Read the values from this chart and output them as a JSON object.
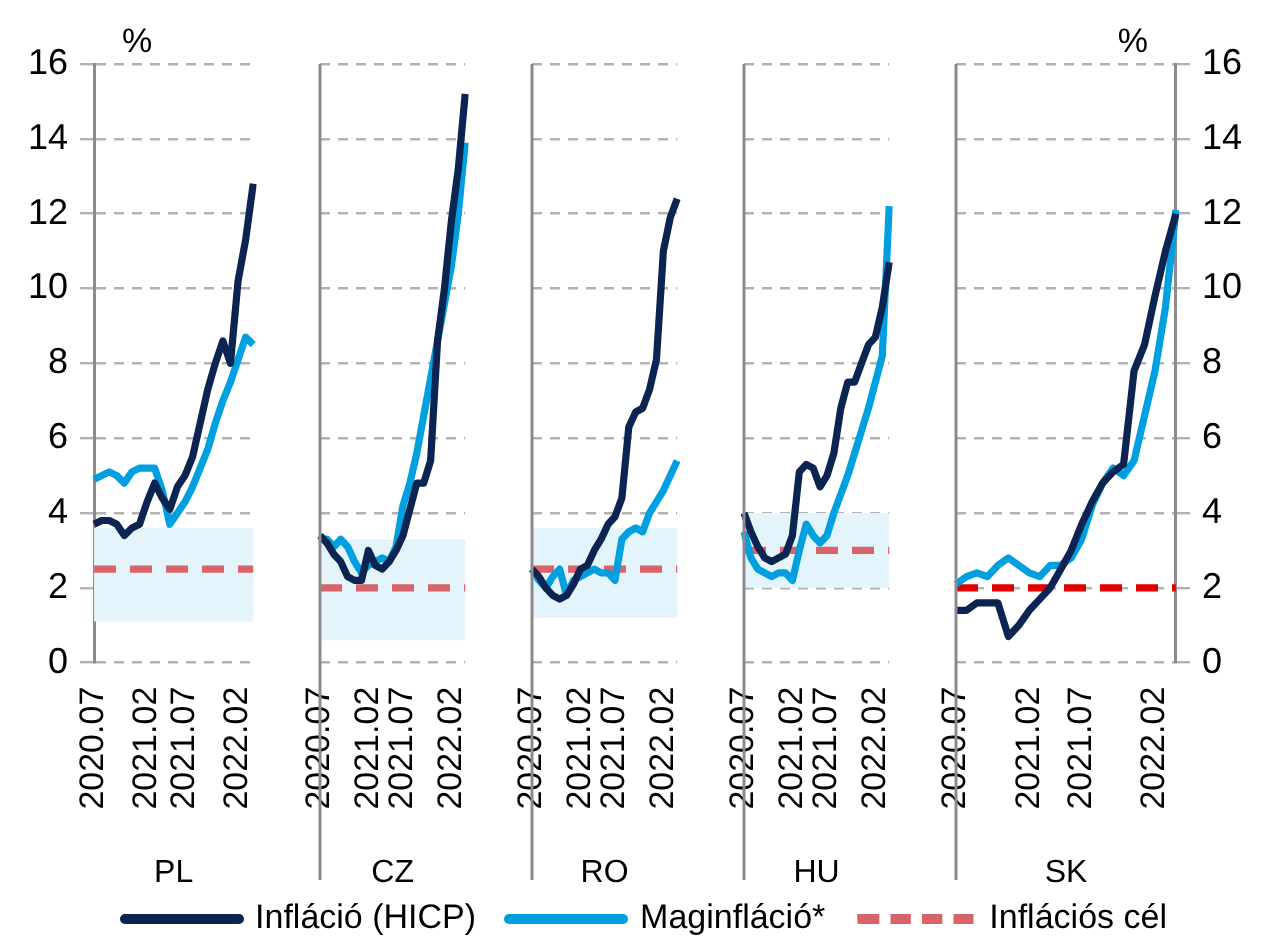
{
  "chart_data": [
    {
      "type": "line",
      "xlabel": "PL",
      "ylabel": "%",
      "categories": [
        "2020.07",
        null,
        null,
        null,
        null,
        null,
        null,
        "2021.02",
        null,
        null,
        null,
        null,
        "2021.07",
        null,
        null,
        null,
        null,
        null,
        null,
        "2022.02",
        null,
        null
      ],
      "ylim": [
        0,
        16
      ],
      "yticks": [
        0,
        2,
        4,
        6,
        8,
        10,
        12,
        14,
        16
      ],
      "grid": "y",
      "legend": "bottom",
      "bands": [
        {
          "axis": "y",
          "from": 1.1,
          "to": 3.6,
          "color": "#e3f4fb"
        }
      ],
      "series": [
        {
          "name": "Infláció (HICP)",
          "color": "#0b2452",
          "values": [
            3.7,
            3.8,
            3.8,
            3.7,
            3.4,
            3.6,
            3.7,
            4.3,
            4.8,
            4.4,
            4.1,
            4.7,
            5.0,
            5.5,
            6.4,
            7.3,
            8.0,
            8.6,
            8.0,
            10.2,
            11.3,
            12.8
          ]
        },
        {
          "name": "Maginfláció*",
          "color": "#00a0e0",
          "values": [
            4.9,
            5.0,
            5.1,
            5.0,
            4.8,
            5.1,
            5.2,
            5.2,
            5.2,
            4.6,
            3.7,
            4.0,
            4.3,
            4.7,
            5.2,
            5.7,
            6.4,
            7.0,
            7.5,
            8.1,
            8.7,
            8.5
          ]
        },
        {
          "name": "Inflációs cél",
          "line_style": "dashed",
          "color": "#d9636b",
          "values": [
            2.5,
            2.5,
            2.5,
            2.5,
            2.5,
            2.5,
            2.5,
            2.5,
            2.5,
            2.5,
            2.5,
            2.5,
            2.5,
            2.5,
            2.5,
            2.5,
            2.5,
            2.5,
            2.5,
            2.5,
            2.5,
            2.5
          ]
        }
      ]
    },
    {
      "type": "line",
      "xlabel": "CZ",
      "categories": [
        "2020.07",
        null,
        null,
        null,
        null,
        null,
        null,
        "2021.02",
        null,
        null,
        null,
        null,
        "2021.07",
        null,
        null,
        null,
        null,
        null,
        null,
        "2022.02",
        null,
        null
      ],
      "ylim": [
        0,
        16
      ],
      "yticks": [
        0,
        2,
        4,
        6,
        8,
        10,
        12,
        14,
        16
      ],
      "grid": "y",
      "tick_labels": "x",
      "bands": [
        {
          "axis": "y",
          "from": 0.6,
          "to": 3.3,
          "color": "#e3f4fb"
        }
      ],
      "series": [
        {
          "color": "#0b2452",
          "values": [
            3.4,
            3.2,
            2.9,
            2.7,
            2.3,
            2.2,
            2.2,
            3.0,
            2.6,
            2.5,
            2.7,
            3.0,
            3.4,
            4.1,
            4.8,
            4.8,
            5.4,
            8.6,
            10.0,
            11.8,
            13.2,
            15.2
          ]
        },
        {
          "color": "#00a0e0",
          "values": [
            3.3,
            3.3,
            3.1,
            3.3,
            3.1,
            2.7,
            2.4,
            2.6,
            2.7,
            2.8,
            2.7,
            3.1,
            4.2,
            4.8,
            5.6,
            6.6,
            7.6,
            8.6,
            9.6,
            10.6,
            12.0,
            13.9
          ]
        },
        {
          "line_style": "dashed",
          "color": "#d9636b",
          "values": [
            2,
            2,
            2,
            2,
            2,
            2,
            2,
            2,
            2,
            2,
            2,
            2,
            2,
            2,
            2,
            2,
            2,
            2,
            2,
            2,
            2,
            2
          ]
        }
      ]
    },
    {
      "type": "line",
      "xlabel": "RO",
      "categories": [
        "2020.07",
        null,
        null,
        null,
        null,
        null,
        null,
        "2021.02",
        null,
        null,
        null,
        null,
        "2021.07",
        null,
        null,
        null,
        null,
        null,
        null,
        "2022.02",
        null,
        null
      ],
      "ylim": [
        0,
        16
      ],
      "yticks": [
        0,
        2,
        4,
        6,
        8,
        10,
        12,
        14,
        16
      ],
      "grid": "y",
      "tick_labels": "x",
      "bands": [
        {
          "axis": "y",
          "from": 1.2,
          "to": 3.6,
          "color": "#e3f4fb"
        }
      ],
      "series": [
        {
          "color": "#0b2452",
          "values": [
            2.5,
            2.3,
            2.0,
            1.8,
            1.7,
            1.8,
            2.1,
            2.5,
            2.6,
            3.0,
            3.3,
            3.7,
            3.9,
            4.4,
            6.3,
            6.7,
            6.8,
            7.3,
            8.1,
            11.0,
            11.9,
            12.4
          ]
        },
        {
          "color": "#00a0e0",
          "values": [
            2.5,
            2.2,
            2.0,
            2.3,
            2.5,
            1.8,
            2.2,
            2.3,
            2.4,
            2.5,
            2.4,
            2.4,
            2.2,
            3.3,
            3.5,
            3.6,
            3.5,
            4.0,
            4.3,
            4.6,
            5.0,
            5.4
          ]
        },
        {
          "line_style": "dashed",
          "color": "#d9636b",
          "values": [
            2.5,
            2.5,
            2.5,
            2.5,
            2.5,
            2.5,
            2.5,
            2.5,
            2.5,
            2.5,
            2.5,
            2.5,
            2.5,
            2.5,
            2.5,
            2.5,
            2.5,
            2.5,
            2.5,
            2.5,
            2.5,
            2.5
          ]
        }
      ]
    },
    {
      "type": "line",
      "xlabel": "HU",
      "categories": [
        "2020.07",
        null,
        null,
        null,
        null,
        null,
        null,
        "2021.02",
        null,
        null,
        null,
        null,
        "2021.07",
        null,
        null,
        null,
        null,
        null,
        null,
        "2022.02",
        null,
        null
      ],
      "ylim": [
        0,
        16
      ],
      "yticks": [
        0,
        2,
        4,
        6,
        8,
        10,
        12,
        14,
        16
      ],
      "grid": "y",
      "tick_labels": "x",
      "bands": [
        {
          "axis": "y",
          "from": 2,
          "to": 4,
          "color": "#e3f4fb"
        }
      ],
      "series": [
        {
          "color": "#0b2452",
          "values": [
            4.0,
            3.5,
            3.1,
            2.8,
            2.7,
            2.8,
            2.9,
            3.4,
            5.1,
            5.3,
            5.2,
            4.7,
            5.0,
            5.6,
            6.8,
            7.5,
            7.5,
            8.0,
            8.5,
            8.7,
            9.5,
            10.7
          ]
        },
        {
          "color": "#00a0e0",
          "values": [
            3.5,
            2.8,
            2.5,
            2.4,
            2.3,
            2.4,
            2.4,
            2.2,
            3.0,
            3.7,
            3.4,
            3.2,
            3.4,
            4.0,
            4.5,
            5.0,
            5.6,
            6.2,
            6.8,
            7.5,
            8.2,
            12.2
          ]
        },
        {
          "line_style": "dashed",
          "color": "#d9636b",
          "values": [
            3,
            3,
            3,
            3,
            3,
            3,
            3,
            3,
            3,
            3,
            3,
            3,
            3,
            3,
            3,
            3,
            3,
            3,
            3,
            3,
            3,
            3
          ]
        }
      ]
    },
    {
      "type": "line",
      "xlabel": "SK",
      "y2label": "%",
      "categories": [
        "2020.07",
        null,
        null,
        null,
        null,
        null,
        null,
        "2021.02",
        null,
        null,
        null,
        null,
        "2021.07",
        null,
        null,
        null,
        null,
        null,
        null,
        "2022.02",
        null,
        null
      ],
      "y2lim": [
        0,
        16
      ],
      "y2ticks": [
        0,
        2,
        4,
        6,
        8,
        10,
        12,
        14,
        16
      ],
      "grid": "y",
      "series": [
        {
          "axis": "y2",
          "color": "#0b2452",
          "values": [
            1.4,
            1.4,
            1.6,
            1.6,
            1.6,
            0.7,
            1.0,
            1.4,
            1.7,
            2.0,
            2.5,
            3.0,
            3.7,
            4.3,
            4.8,
            5.1,
            5.3,
            7.8,
            8.5,
            9.8,
            11.0,
            12.0
          ]
        },
        {
          "axis": "y2",
          "color": "#00a0e0",
          "values": [
            2.1,
            2.3,
            2.4,
            2.3,
            2.6,
            2.8,
            2.6,
            2.4,
            2.3,
            2.6,
            2.6,
            2.8,
            3.3,
            4.2,
            4.8,
            5.2,
            5.0,
            5.4,
            6.6,
            7.8,
            9.5,
            12.1
          ]
        },
        {
          "axis": "y2",
          "line_style": "dashed",
          "color": "#e00000",
          "values": [
            2,
            2,
            2,
            2,
            2,
            2,
            2,
            2,
            2,
            2,
            2,
            2,
            2,
            2,
            2,
            2,
            2,
            2,
            2,
            2,
            2,
            2
          ]
        }
      ]
    }
  ]
}
